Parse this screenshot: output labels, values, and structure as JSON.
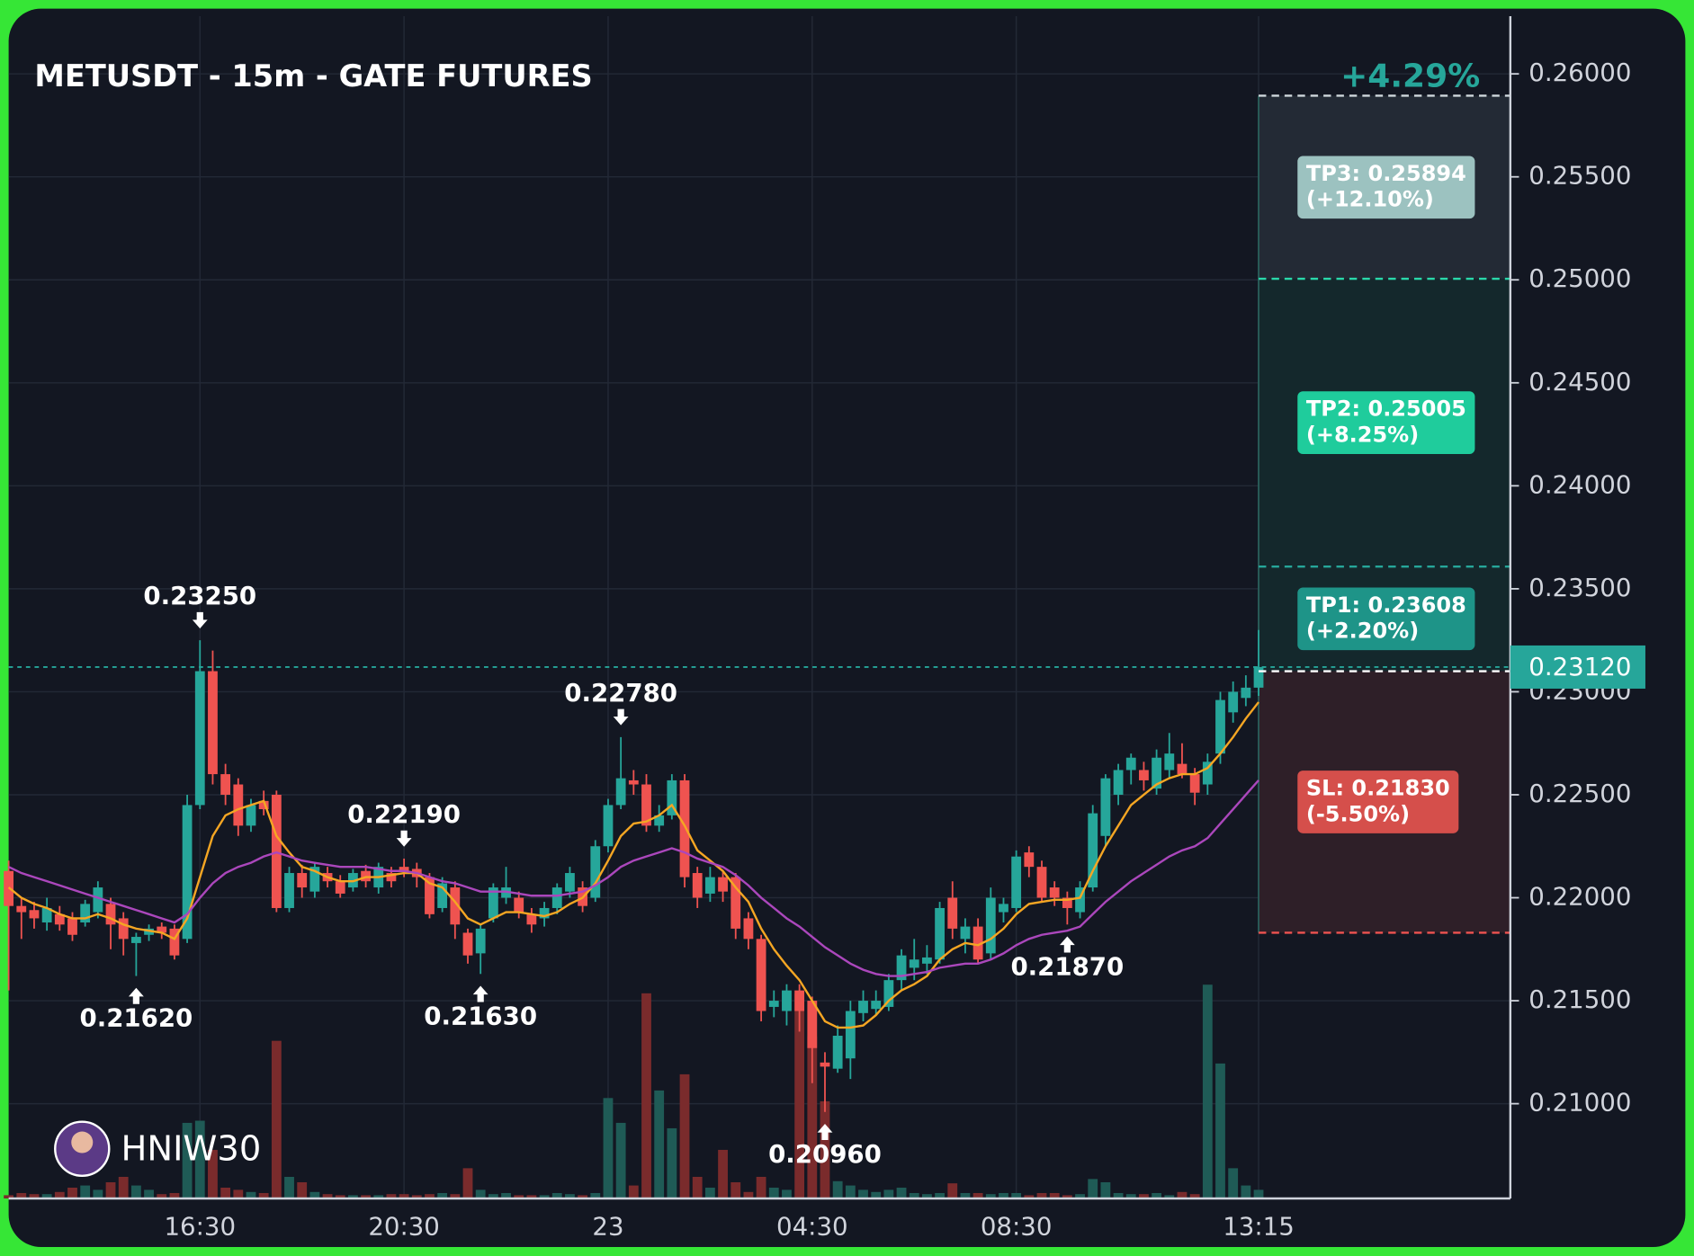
{
  "chart_data": {
    "type": "candlestick",
    "title": "METUSDT - 15m - GATE FUTURES",
    "change": "+4.29%",
    "watermark": "HNIW30",
    "categories": [
      null,
      null,
      null,
      null,
      null,
      null,
      null,
      null,
      null,
      null,
      null,
      null,
      null,
      null,
      null,
      "16:30",
      null,
      null,
      null,
      null,
      null,
      null,
      null,
      null,
      null,
      null,
      null,
      null,
      null,
      null,
      null,
      "20:30",
      null,
      null,
      null,
      null,
      null,
      null,
      null,
      null,
      null,
      null,
      null,
      null,
      null,
      null,
      null,
      "23",
      null,
      null,
      null,
      null,
      null,
      null,
      null,
      null,
      null,
      null,
      null,
      null,
      null,
      null,
      null,
      "04:30",
      null,
      null,
      null,
      null,
      null,
      null,
      null,
      null,
      null,
      null,
      null,
      null,
      null,
      null,
      null,
      "08:30",
      null,
      null,
      null,
      null,
      null,
      null,
      null,
      null,
      null,
      null,
      null,
      null,
      null,
      null,
      null,
      null,
      null,
      null,
      "13:15"
    ],
    "ohlc": [
      [
        0.2213,
        0.2218,
        0.2155,
        0.2196
      ],
      [
        0.2196,
        0.22,
        0.218,
        0.2193
      ],
      [
        0.2194,
        0.2198,
        0.2185,
        0.219
      ],
      [
        0.2188,
        0.22,
        0.2184,
        0.2195
      ],
      [
        0.2192,
        0.2196,
        0.2184,
        0.2187
      ],
      [
        0.219,
        0.2193,
        0.2179,
        0.2182
      ],
      [
        0.2188,
        0.2199,
        0.2186,
        0.2197
      ],
      [
        0.2193,
        0.2208,
        0.219,
        0.2205
      ],
      [
        0.2197,
        0.22,
        0.2175,
        0.2187
      ],
      [
        0.219,
        0.2193,
        0.2172,
        0.218
      ],
      [
        0.2178,
        0.2183,
        0.2162,
        0.2181
      ],
      [
        0.2182,
        0.2187,
        0.2179,
        0.2185
      ],
      [
        0.2186,
        0.2188,
        0.218,
        0.2183
      ],
      [
        0.2185,
        0.2187,
        0.217,
        0.2172
      ],
      [
        0.218,
        0.225,
        0.2178,
        0.2245
      ],
      [
        0.2245,
        0.2325,
        0.2243,
        0.231
      ],
      [
        0.231,
        0.232,
        0.2255,
        0.226
      ],
      [
        0.226,
        0.2265,
        0.2245,
        0.225
      ],
      [
        0.2255,
        0.2258,
        0.223,
        0.2235
      ],
      [
        0.2235,
        0.2248,
        0.2232,
        0.2245
      ],
      [
        0.2247,
        0.2252,
        0.224,
        0.2243
      ],
      [
        0.225,
        0.2252,
        0.2193,
        0.2195
      ],
      [
        0.2195,
        0.2215,
        0.2193,
        0.2212
      ],
      [
        0.2212,
        0.2216,
        0.22,
        0.2205
      ],
      [
        0.2203,
        0.2217,
        0.22,
        0.2215
      ],
      [
        0.2212,
        0.2215,
        0.2205,
        0.2208
      ],
      [
        0.2208,
        0.2211,
        0.22,
        0.2202
      ],
      [
        0.2205,
        0.2214,
        0.2203,
        0.2212
      ],
      [
        0.2213,
        0.2216,
        0.2205,
        0.2208
      ],
      [
        0.2205,
        0.2217,
        0.2202,
        0.2215
      ],
      [
        0.2212,
        0.2215,
        0.2205,
        0.2208
      ],
      [
        0.2215,
        0.2219,
        0.221,
        0.2213
      ],
      [
        0.2214,
        0.2217,
        0.2205,
        0.221
      ],
      [
        0.221,
        0.2212,
        0.219,
        0.2192
      ],
      [
        0.2195,
        0.221,
        0.2193,
        0.2207
      ],
      [
        0.2205,
        0.2208,
        0.218,
        0.2187
      ],
      [
        0.2183,
        0.2185,
        0.2168,
        0.2172
      ],
      [
        0.2173,
        0.2187,
        0.2163,
        0.2185
      ],
      [
        0.219,
        0.2207,
        0.2188,
        0.2205
      ],
      [
        0.22,
        0.2215,
        0.2197,
        0.2205
      ],
      [
        0.22,
        0.2203,
        0.219,
        0.2193
      ],
      [
        0.2192,
        0.2195,
        0.2183,
        0.2187
      ],
      [
        0.219,
        0.2198,
        0.2186,
        0.2195
      ],
      [
        0.2195,
        0.2207,
        0.2192,
        0.2205
      ],
      [
        0.2203,
        0.2215,
        0.22,
        0.2212
      ],
      [
        0.2205,
        0.2208,
        0.2193,
        0.2196
      ],
      [
        0.22,
        0.2228,
        0.2198,
        0.2225
      ],
      [
        0.2225,
        0.2248,
        0.2222,
        0.2245
      ],
      [
        0.2245,
        0.2278,
        0.2243,
        0.2258
      ],
      [
        0.2257,
        0.2262,
        0.225,
        0.2255
      ],
      [
        0.2255,
        0.226,
        0.2232,
        0.2235
      ],
      [
        0.2235,
        0.2245,
        0.2232,
        0.224
      ],
      [
        0.224,
        0.226,
        0.2238,
        0.2257
      ],
      [
        0.2257,
        0.226,
        0.2205,
        0.221
      ],
      [
        0.2212,
        0.2215,
        0.2195,
        0.22
      ],
      [
        0.2202,
        0.2215,
        0.2198,
        0.221
      ],
      [
        0.221,
        0.2213,
        0.2198,
        0.2203
      ],
      [
        0.221,
        0.2212,
        0.218,
        0.2185
      ],
      [
        0.219,
        0.2193,
        0.2175,
        0.218
      ],
      [
        0.218,
        0.2182,
        0.214,
        0.2145
      ],
      [
        0.2147,
        0.2155,
        0.2142,
        0.215
      ],
      [
        0.2145,
        0.2158,
        0.2138,
        0.2155
      ],
      [
        0.2155,
        0.2158,
        0.2135,
        0.2145
      ],
      [
        0.215,
        0.2152,
        0.211,
        0.2127
      ],
      [
        0.212,
        0.2125,
        0.2096,
        0.2118
      ],
      [
        0.2117,
        0.2138,
        0.2115,
        0.2133
      ],
      [
        0.2122,
        0.215,
        0.2112,
        0.2145
      ],
      [
        0.2144,
        0.2155,
        0.214,
        0.215
      ],
      [
        0.2146,
        0.2155,
        0.2143,
        0.215
      ],
      [
        0.2147,
        0.2163,
        0.2145,
        0.216
      ],
      [
        0.216,
        0.2175,
        0.2155,
        0.2172
      ],
      [
        0.2166,
        0.218,
        0.216,
        0.217
      ],
      [
        0.2168,
        0.2177,
        0.2163,
        0.2171
      ],
      [
        0.217,
        0.2198,
        0.2168,
        0.2195
      ],
      [
        0.22,
        0.2208,
        0.218,
        0.2185
      ],
      [
        0.218,
        0.219,
        0.2173,
        0.2186
      ],
      [
        0.2186,
        0.219,
        0.2168,
        0.217
      ],
      [
        0.2173,
        0.2205,
        0.217,
        0.22
      ],
      [
        0.2193,
        0.22,
        0.2188,
        0.2197
      ],
      [
        0.2195,
        0.2223,
        0.2193,
        0.222
      ],
      [
        0.2222,
        0.2225,
        0.221,
        0.2215
      ],
      [
        0.2215,
        0.2218,
        0.2198,
        0.22
      ],
      [
        0.2205,
        0.2208,
        0.2196,
        0.22
      ],
      [
        0.22,
        0.2203,
        0.2187,
        0.2195
      ],
      [
        0.2193,
        0.2208,
        0.219,
        0.2205
      ],
      [
        0.2205,
        0.2245,
        0.2203,
        0.2241
      ],
      [
        0.223,
        0.226,
        0.2225,
        0.2258
      ],
      [
        0.225,
        0.2265,
        0.2245,
        0.2262
      ],
      [
        0.2262,
        0.227,
        0.2255,
        0.2268
      ],
      [
        0.2262,
        0.2266,
        0.2252,
        0.2257
      ],
      [
        0.2253,
        0.2272,
        0.225,
        0.2268
      ],
      [
        0.2262,
        0.228,
        0.2258,
        0.227
      ],
      [
        0.2265,
        0.2275,
        0.2258,
        0.226
      ],
      [
        0.226,
        0.2263,
        0.2245,
        0.2251
      ],
      [
        0.2255,
        0.227,
        0.225,
        0.2266
      ],
      [
        0.227,
        0.23,
        0.2265,
        0.2296
      ],
      [
        0.229,
        0.2305,
        0.2285,
        0.23
      ],
      [
        0.2297,
        0.2308,
        0.2293,
        0.2302
      ],
      [
        0.2302,
        0.233,
        0.2298,
        0.2312
      ]
    ],
    "volume": [
      3,
      5,
      4,
      4,
      6,
      10,
      12,
      8,
      15,
      20,
      12,
      8,
      4,
      5,
      70,
      72,
      45,
      10,
      8,
      6,
      5,
      146,
      20,
      15,
      6,
      4,
      3,
      3,
      3,
      3,
      4,
      4,
      3,
      4,
      5,
      4,
      28,
      8,
      4,
      5,
      3,
      3,
      3,
      5,
      4,
      3,
      5,
      93,
      70,
      12,
      190,
      100,
      65,
      115,
      20,
      10,
      45,
      15,
      6,
      20,
      10,
      8,
      190,
      150,
      90,
      16,
      12,
      8,
      6,
      8,
      10,
      5,
      4,
      5,
      14,
      5,
      5,
      4,
      5,
      5,
      3,
      5,
      5,
      3,
      4,
      18,
      15,
      5,
      4,
      4,
      5,
      3,
      6,
      4,
      198,
      125,
      28,
      12,
      8
    ],
    "up_color": "#26a69a",
    "down_color": "#ef5350",
    "up_volume_color": "#1f5b56",
    "down_volume_color": "#7a2b2c",
    "lines": [
      {
        "color": "#f5a623",
        "values": [
          0.2205,
          0.22,
          0.2197,
          0.2195,
          0.2192,
          0.219,
          0.219,
          0.2192,
          0.219,
          0.2187,
          0.2185,
          0.2184,
          0.2183,
          0.218,
          0.219,
          0.221,
          0.223,
          0.224,
          0.2243,
          0.2245,
          0.2247,
          0.223,
          0.2222,
          0.2215,
          0.2213,
          0.221,
          0.2208,
          0.2208,
          0.221,
          0.221,
          0.2211,
          0.2212,
          0.2212,
          0.2207,
          0.2205,
          0.2198,
          0.219,
          0.2187,
          0.219,
          0.2193,
          0.2193,
          0.2192,
          0.2191,
          0.2193,
          0.2197,
          0.22,
          0.2207,
          0.2218,
          0.223,
          0.2236,
          0.2237,
          0.224,
          0.2245,
          0.2235,
          0.2223,
          0.2218,
          0.2213,
          0.2205,
          0.2198,
          0.2185,
          0.2175,
          0.2167,
          0.216,
          0.215,
          0.214,
          0.2137,
          0.2137,
          0.2138,
          0.2143,
          0.215,
          0.2155,
          0.2158,
          0.2162,
          0.217,
          0.2175,
          0.2178,
          0.2177,
          0.218,
          0.2185,
          0.2192,
          0.2197,
          0.2198,
          0.2199,
          0.2199,
          0.22,
          0.2213,
          0.2225,
          0.2235,
          0.2245,
          0.225,
          0.2255,
          0.2258,
          0.226,
          0.226,
          0.2263,
          0.227,
          0.2278,
          0.2287,
          0.2295
        ]
      },
      {
        "color": "#ab47bc",
        "values": [
          0.2215,
          0.2212,
          0.221,
          0.2208,
          0.2206,
          0.2204,
          0.2202,
          0.22,
          0.2198,
          0.2196,
          0.2194,
          0.2192,
          0.219,
          0.2188,
          0.2192,
          0.22,
          0.2207,
          0.2212,
          0.2215,
          0.2217,
          0.222,
          0.2222,
          0.222,
          0.2218,
          0.2217,
          0.2216,
          0.2215,
          0.2215,
          0.2215,
          0.2214,
          0.2213,
          0.2213,
          0.2212,
          0.221,
          0.2208,
          0.2207,
          0.2205,
          0.2203,
          0.2203,
          0.2203,
          0.2202,
          0.2201,
          0.2201,
          0.2201,
          0.2202,
          0.2203,
          0.2206,
          0.221,
          0.2215,
          0.2218,
          0.222,
          0.2222,
          0.2224,
          0.2222,
          0.2219,
          0.2217,
          0.2215,
          0.2211,
          0.2206,
          0.22,
          0.2195,
          0.219,
          0.2186,
          0.2181,
          0.2176,
          0.2172,
          0.2168,
          0.2165,
          0.2163,
          0.2162,
          0.2162,
          0.2163,
          0.2164,
          0.2166,
          0.2167,
          0.2168,
          0.2168,
          0.217,
          0.2173,
          0.2177,
          0.218,
          0.2182,
          0.2183,
          0.2184,
          0.2186,
          0.2192,
          0.2198,
          0.2203,
          0.2208,
          0.2212,
          0.2216,
          0.222,
          0.2223,
          0.2225,
          0.2229,
          0.2236,
          0.2243,
          0.225,
          0.2257
        ]
      }
    ],
    "ylim": [
      0.2054,
      0.2628
    ],
    "yticks": [
      {
        "value": 0.21,
        "label": "0.21000"
      },
      {
        "value": 0.215,
        "label": "0.21500"
      },
      {
        "value": 0.22,
        "label": "0.22000"
      },
      {
        "value": 0.225,
        "label": "0.22500"
      },
      {
        "value": 0.23,
        "label": "0.23000"
      },
      {
        "value": 0.235,
        "label": "0.23500"
      },
      {
        "value": 0.24,
        "label": "0.24000"
      },
      {
        "value": 0.245,
        "label": "0.24500"
      },
      {
        "value": 0.25,
        "label": "0.25000"
      },
      {
        "value": 0.255,
        "label": "0.25500"
      },
      {
        "value": 0.26,
        "label": "0.26000"
      }
    ],
    "grid": true,
    "last_price": {
      "value": 0.2312,
      "label": "0.23120"
    },
    "entry": 0.231,
    "levels": [
      {
        "value": 0.25894,
        "label": "TP3: 0.25894",
        "note": "(+12.10%)",
        "color": "#9cc2c0",
        "line_color": "#cfd8dc",
        "zone_color": "#232a35"
      },
      {
        "value": 0.25005,
        "label": "TP2: 0.25005",
        "note": "(+8.25%)",
        "color": "#1fcc9c",
        "line_color": "#2ad8aa",
        "zone_color": "#14282c"
      },
      {
        "value": 0.23608,
        "label": "TP1: 0.23608",
        "note": "(+2.20%)",
        "color": "#1e9488",
        "line_color": "#26a69a",
        "zone_color": "#14282c"
      },
      {
        "value": 0.2183,
        "label": "SL: 0.21830",
        "note": "(-5.50%)",
        "color": "#d54f4b",
        "line_color": "#ef5350",
        "zone_color": "#2e1f28"
      }
    ],
    "annotations": [
      {
        "index": 15,
        "value": 0.2325,
        "label": "0.23250",
        "position": "above"
      },
      {
        "index": 10,
        "value": 0.2162,
        "label": "0.21620",
        "position": "below"
      },
      {
        "index": 31,
        "value": 0.2219,
        "label": "0.22190",
        "position": "above"
      },
      {
        "index": 37,
        "value": 0.2163,
        "label": "0.21630",
        "position": "below"
      },
      {
        "index": 48,
        "value": 0.2278,
        "label": "0.22780",
        "position": "above"
      },
      {
        "index": 64,
        "value": 0.2096,
        "label": "0.20960",
        "position": "below"
      },
      {
        "index": 83,
        "value": 0.2187,
        "label": "0.21870",
        "position": "below"
      }
    ]
  }
}
